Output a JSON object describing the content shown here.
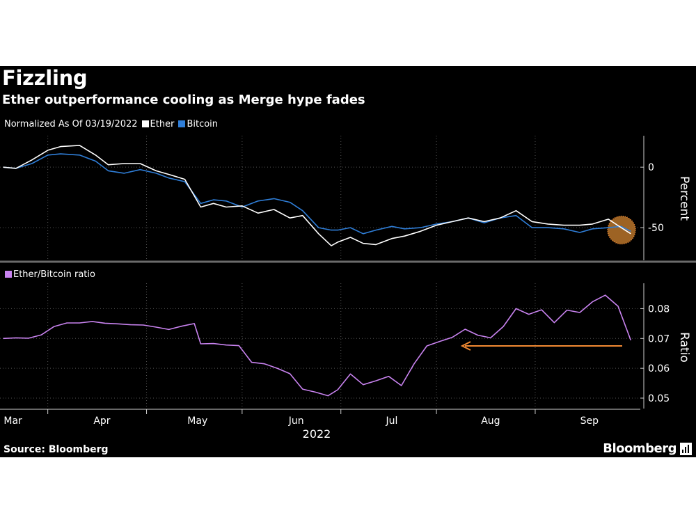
{
  "header": {
    "title": "Fizzling",
    "subtitle": "Ether outperformance cooling as Merge hype fades"
  },
  "top_legend": {
    "prefix": "Normalized As Of 03/19/2022",
    "ether": "Ether",
    "bitcoin": "Bitcoin"
  },
  "bottom_legend": {
    "ratio": "Ether/Bitcoin ratio"
  },
  "footer": {
    "source": "Source: Bloomberg",
    "brand": "Bloomberg"
  },
  "colors": {
    "background": "#000000",
    "ether": "#ffffff",
    "bitcoin": "#2f7ed8",
    "ratio": "#c983f0",
    "arrow": "#f28a33",
    "highlight": "#b8742a"
  },
  "chart_data": [
    {
      "type": "line",
      "ylabel": "Percent",
      "yticks": [
        0,
        -50
      ],
      "ylim": [
        -77,
        26
      ],
      "grid": true,
      "legend_placement": "top-left",
      "x": [
        "2022-03-01",
        "2022-03-05",
        "2022-03-10",
        "2022-03-15",
        "2022-03-19",
        "2022-03-25",
        "2022-03-30",
        "2022-04-03",
        "2022-04-08",
        "2022-04-13",
        "2022-04-18",
        "2022-04-22",
        "2022-04-27",
        "2022-05-02",
        "2022-05-06",
        "2022-05-10",
        "2022-05-15",
        "2022-05-20",
        "2022-05-25",
        "2022-05-30",
        "2022-06-03",
        "2022-06-08",
        "2022-06-12",
        "2022-06-14",
        "2022-06-18",
        "2022-06-22",
        "2022-06-26",
        "2022-07-01",
        "2022-07-05",
        "2022-07-10",
        "2022-07-15",
        "2022-07-20",
        "2022-07-25",
        "2022-07-30",
        "2022-08-04",
        "2022-08-09",
        "2022-08-14",
        "2022-08-19",
        "2022-08-24",
        "2022-08-29",
        "2022-09-02",
        "2022-09-07",
        "2022-09-11",
        "2022-09-14"
      ],
      "series": [
        {
          "name": "Ether",
          "values": [
            0,
            -1,
            6,
            14,
            17,
            18,
            10,
            2,
            3,
            3,
            -3,
            -6,
            -10,
            -33,
            -30,
            -33,
            -32,
            -38,
            -35,
            -42,
            -40,
            -55,
            -65,
            -62,
            -58,
            -63,
            -64,
            -59,
            -57,
            -53,
            -48,
            -45,
            -42,
            -45,
            -42,
            -36,
            -45,
            -47,
            -48,
            -48,
            -47,
            -43,
            -50,
            -55
          ]
        },
        {
          "name": "Bitcoin",
          "values": [
            0,
            -1,
            3,
            10,
            11,
            10,
            5,
            -3,
            -5,
            -2,
            -5,
            -9,
            -12,
            -30,
            -27,
            -28,
            -33,
            -28,
            -26,
            -29,
            -36,
            -50,
            -52,
            -52,
            -50,
            -55,
            -52,
            -49,
            -51,
            -50,
            -47,
            -45,
            -42,
            -46,
            -42,
            -40,
            -50,
            -50,
            -51,
            -54,
            -51,
            -50,
            -49,
            -53
          ]
        }
      ]
    },
    {
      "type": "line",
      "ylabel": "Ratio",
      "yticks": [
        0.08,
        0.07,
        0.06,
        0.05
      ],
      "ylim": [
        0.0465,
        0.0885
      ],
      "grid": true,
      "legend_placement": "top-left",
      "x": [
        "2022-03-01",
        "2022-03-05",
        "2022-03-09",
        "2022-03-13",
        "2022-03-17",
        "2022-03-21",
        "2022-03-25",
        "2022-03-29",
        "2022-04-02",
        "2022-04-06",
        "2022-04-10",
        "2022-04-14",
        "2022-04-18",
        "2022-04-22",
        "2022-04-26",
        "2022-04-30",
        "2022-05-02",
        "2022-05-06",
        "2022-05-10",
        "2022-05-14",
        "2022-05-18",
        "2022-05-22",
        "2022-05-26",
        "2022-05-30",
        "2022-06-03",
        "2022-06-07",
        "2022-06-11",
        "2022-06-14",
        "2022-06-18",
        "2022-06-22",
        "2022-06-26",
        "2022-06-30",
        "2022-07-04",
        "2022-07-08",
        "2022-07-12",
        "2022-07-16",
        "2022-07-20",
        "2022-07-24",
        "2022-07-28",
        "2022-08-01",
        "2022-08-05",
        "2022-08-09",
        "2022-08-13",
        "2022-08-17",
        "2022-08-21",
        "2022-08-25",
        "2022-08-29",
        "2022-09-02",
        "2022-09-06",
        "2022-09-10",
        "2022-09-14"
      ],
      "series": [
        {
          "name": "Ether/Bitcoin ratio",
          "values": [
            0.07,
            0.0702,
            0.0701,
            0.0712,
            0.074,
            0.0752,
            0.0752,
            0.0757,
            0.0751,
            0.0749,
            0.0746,
            0.0745,
            0.0738,
            0.073,
            0.0741,
            0.075,
            0.0682,
            0.0683,
            0.0678,
            0.0676,
            0.062,
            0.0615,
            0.06,
            0.0582,
            0.053,
            0.052,
            0.0508,
            0.0528,
            0.0581,
            0.0545,
            0.0558,
            0.0573,
            0.0542,
            0.0615,
            0.0675,
            0.069,
            0.0704,
            0.0731,
            0.0711,
            0.0702,
            0.074,
            0.08,
            0.0781,
            0.0796,
            0.0753,
            0.0795,
            0.0787,
            0.0823,
            0.0845,
            0.0808,
            0.0694
          ]
        }
      ]
    }
  ],
  "x_axis": {
    "months": [
      "Mar",
      "Apr",
      "May",
      "Jun",
      "Jul",
      "Aug",
      "Sep"
    ],
    "year": "2022"
  }
}
